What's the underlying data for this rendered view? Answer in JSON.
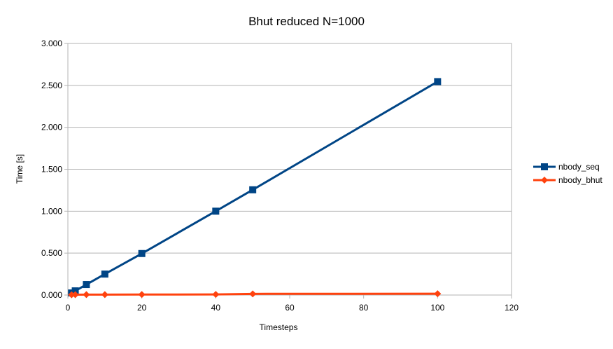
{
  "chart_data": {
    "type": "line",
    "title": "Bhut reduced N=1000",
    "xlabel": "Timesteps",
    "ylabel": "Time [s]",
    "xlim": [
      0,
      120
    ],
    "ylim": [
      0,
      3
    ],
    "x_ticks": [
      "0",
      "20",
      "40",
      "60",
      "80",
      "100",
      "120"
    ],
    "y_ticks": [
      "0.000",
      "0.500",
      "1.000",
      "1.500",
      "2.000",
      "2.500",
      "3.000"
    ],
    "grid": true,
    "legend_position": "right",
    "series": [
      {
        "name": "nbody_seq",
        "color": "#004586",
        "marker": "square",
        "x": [
          1,
          2,
          5,
          10,
          20,
          40,
          50,
          100
        ],
        "y": [
          0.025,
          0.05,
          0.125,
          0.25,
          0.495,
          1.0,
          1.255,
          2.545
        ]
      },
      {
        "name": "nbody_bhut",
        "color": "#ff420e",
        "marker": "diamond",
        "x": [
          1,
          2,
          5,
          10,
          20,
          40,
          50,
          100
        ],
        "y": [
          0.003,
          0.004,
          0.005,
          0.005,
          0.006,
          0.007,
          0.014,
          0.016
        ]
      }
    ]
  }
}
